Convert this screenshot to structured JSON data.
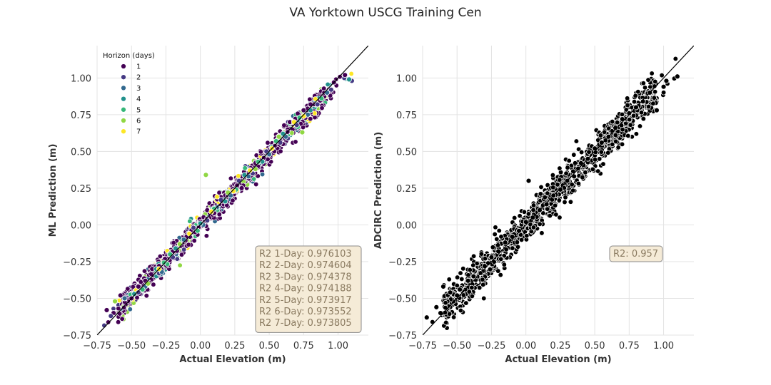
{
  "title": "VA Yorktown USCG Training Cen",
  "colors": {
    "grid": "#e3e3e3",
    "diag": "#000000",
    "box_fill": "#f5ebd7",
    "box_stroke": "#8a8a8a",
    "box_text": "#8a7a60",
    "marker_edge": "#ffffff",
    "right_marker": "#000000"
  },
  "chart_data": [
    {
      "type": "scatter",
      "title": "",
      "xlabel": "Actual Elevation (m)",
      "ylabel": "ML Prediction (m)",
      "xlim": [
        -0.75,
        1.22
      ],
      "ylim": [
        -0.75,
        1.22
      ],
      "xticks": [
        "−0.75",
        "−0.50",
        "−0.25",
        "0.00",
        "0.25",
        "0.50",
        "0.75",
        "1.00"
      ],
      "yticks": [
        "−0.75",
        "−0.50",
        "−0.25",
        "0.00",
        "0.25",
        "0.50",
        "0.75",
        "1.00"
      ],
      "tick_values": [
        -0.75,
        -0.5,
        -0.25,
        0,
        0.25,
        0.5,
        0.75,
        1.0
      ],
      "grid": true,
      "reference_line": "y = x",
      "legend": {
        "title": "Horizon (days)",
        "placement": "top-left",
        "entries": [
          {
            "label": "1",
            "color": "#440154"
          },
          {
            "label": "2",
            "color": "#443983"
          },
          {
            "label": "3",
            "color": "#31688e"
          },
          {
            "label": "4",
            "color": "#21918c"
          },
          {
            "label": "5",
            "color": "#35b779"
          },
          {
            "label": "6",
            "color": "#90d743"
          },
          {
            "label": "7",
            "color": "#fde725"
          }
        ]
      },
      "annotation_lines": [
        "R2 1-Day: 0.976103",
        "R2 2-Day: 0.974604",
        "R2 3-Day: 0.974378",
        "R2 4-Day: 0.974188",
        "R2 5-Day: 0.973917",
        "R2 6-Day: 0.973552",
        "R2 7-Day: 0.973805"
      ],
      "annotation_placement": "bottom-right",
      "series": [
        {
          "name": "1",
          "color": "#440154",
          "x": [
            -0.68,
            -0.63,
            -0.58,
            -0.5,
            -0.45,
            -0.4,
            -0.35,
            -0.3,
            -0.2,
            -0.1,
            0.0,
            0.05,
            0.1,
            0.2,
            0.3,
            0.4,
            0.5,
            0.6,
            0.65,
            0.75,
            0.8,
            0.9,
            0.97,
            1.05
          ],
          "y": [
            -0.58,
            -0.6,
            -0.48,
            -0.5,
            -0.42,
            -0.38,
            -0.3,
            -0.28,
            -0.18,
            -0.08,
            0.02,
            0.1,
            0.08,
            0.2,
            0.25,
            0.42,
            0.48,
            0.55,
            0.7,
            0.78,
            0.82,
            0.9,
            0.97,
            1.02
          ]
        },
        {
          "name": "2",
          "color": "#443983",
          "x": [
            -0.65,
            -0.55,
            -0.45,
            -0.3,
            -0.2,
            -0.05,
            0.05,
            0.15,
            0.28,
            0.38,
            0.48,
            0.58,
            0.7,
            0.85,
            0.95,
            1.1
          ],
          "y": [
            -0.62,
            -0.5,
            -0.46,
            -0.33,
            -0.22,
            -0.02,
            0.03,
            0.17,
            0.3,
            0.35,
            0.5,
            0.56,
            0.68,
            0.82,
            0.92,
            0.98
          ]
        },
        {
          "name": "3",
          "color": "#31688e",
          "x": [
            -0.55,
            -0.4,
            -0.28,
            -0.12,
            0.02,
            0.12,
            0.22,
            0.35,
            0.5,
            0.62,
            0.78,
            0.92
          ],
          "y": [
            -0.5,
            -0.42,
            -0.32,
            -0.1,
            0.0,
            0.12,
            0.2,
            0.33,
            0.48,
            0.6,
            0.75,
            0.9
          ]
        },
        {
          "name": "4",
          "color": "#21918c",
          "x": [
            -0.48,
            -0.32,
            -0.18,
            0.0,
            0.18,
            0.32,
            0.45,
            0.6,
            0.8,
            1.08
          ],
          "y": [
            -0.47,
            -0.3,
            -0.16,
            0.01,
            0.16,
            0.34,
            0.43,
            0.62,
            0.78,
            0.99
          ]
        },
        {
          "name": "5",
          "color": "#35b779",
          "x": [
            -0.42,
            -0.22,
            -0.02,
            0.1,
            0.26,
            0.42,
            0.55,
            0.72,
            0.88
          ],
          "y": [
            -0.44,
            -0.2,
            -0.04,
            0.11,
            0.24,
            0.43,
            0.57,
            0.73,
            0.86
          ]
        },
        {
          "name": "6",
          "color": "#90d743",
          "x": [
            -0.62,
            -0.38,
            -0.15,
            0.04,
            0.2,
            0.4,
            0.57,
            0.74
          ],
          "y": [
            -0.52,
            -0.4,
            -0.13,
            0.34,
            0.22,
            0.38,
            0.6,
            0.63
          ]
        },
        {
          "name": "7",
          "color": "#fde725",
          "x": [
            -0.3,
            -0.08,
            0.08,
            0.24,
            0.36,
            0.52,
            0.68,
            0.75
          ],
          "y": [
            -0.3,
            -0.06,
            0.09,
            0.23,
            0.37,
            0.52,
            0.7,
            0.74
          ]
        }
      ]
    },
    {
      "type": "scatter",
      "title": "",
      "xlabel": "Actual Elevation (m)",
      "ylabel": "ADCIRC Prediction (m)",
      "xlim": [
        -0.75,
        1.22
      ],
      "ylim": [
        -0.75,
        1.22
      ],
      "xticks": [
        "−0.75",
        "−0.50",
        "−0.25",
        "0.00",
        "0.25",
        "0.50",
        "0.75",
        "1.00"
      ],
      "yticks": [
        "−0.75",
        "−0.50",
        "−0.25",
        "0.00",
        "0.25",
        "0.50",
        "0.75",
        "1.00"
      ],
      "tick_values": [
        -0.75,
        -0.5,
        -0.25,
        0,
        0.25,
        0.5,
        0.75,
        1.0
      ],
      "grid": true,
      "reference_line": "y = x",
      "annotation_lines": [
        "R2: 0.957"
      ],
      "annotation_placement": "center-right",
      "series": [
        {
          "name": "",
          "color": "#000000",
          "x": [
            -0.72,
            -0.65,
            -0.62,
            -0.6,
            -0.55,
            -0.5,
            -0.48,
            -0.42,
            -0.38,
            -0.3,
            -0.25,
            -0.2,
            -0.15,
            -0.1,
            -0.05,
            0.0,
            0.02,
            0.05,
            0.1,
            0.15,
            0.2,
            0.25,
            0.3,
            0.35,
            0.4,
            0.45,
            0.5,
            0.55,
            0.6,
            0.65,
            0.7,
            0.75,
            0.8,
            0.85,
            0.9,
            0.95,
            1.0,
            1.02,
            1.1
          ],
          "y": [
            -0.63,
            -0.56,
            -0.6,
            -0.42,
            -0.46,
            -0.48,
            -0.44,
            -0.38,
            -0.35,
            -0.28,
            -0.22,
            -0.18,
            -0.12,
            -0.08,
            -0.04,
            0.02,
            0.3,
            0.05,
            0.1,
            0.14,
            0.2,
            0.24,
            0.3,
            0.33,
            0.42,
            0.45,
            0.52,
            0.56,
            0.6,
            0.66,
            0.72,
            0.76,
            0.8,
            0.84,
            0.9,
            0.78,
            0.94,
            0.98,
            1.01
          ]
        }
      ]
    }
  ]
}
